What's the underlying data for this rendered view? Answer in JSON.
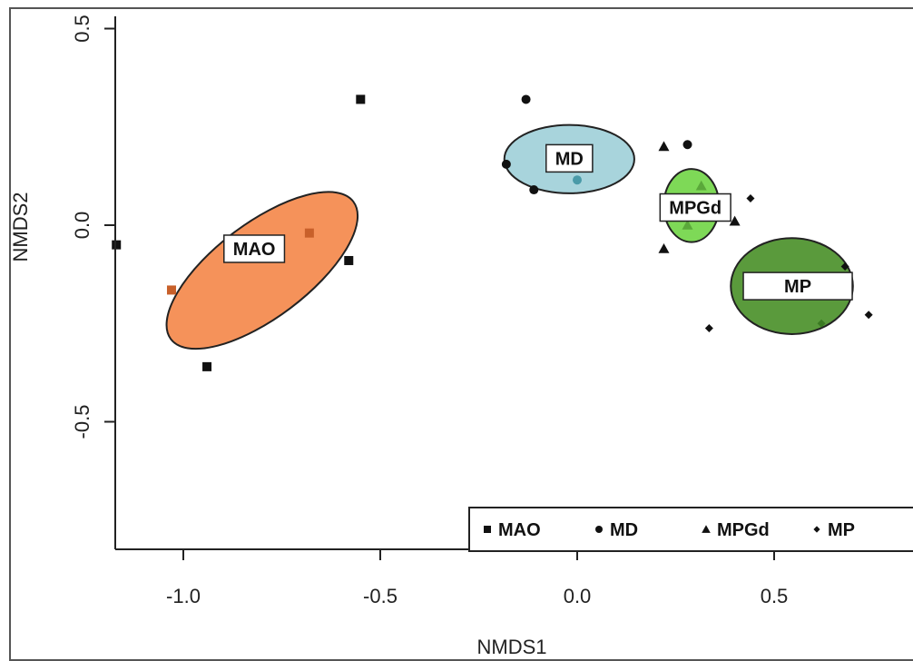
{
  "chart_data": {
    "type": "scatter",
    "title": "",
    "xlabel": "NMDS1",
    "ylabel": "NMDS2",
    "xlim": [
      -1.2,
      0.85
    ],
    "ylim": [
      -0.82,
      0.53
    ],
    "xticks": [
      -1.0,
      -0.5,
      0.0,
      0.5
    ],
    "xtick_labels": [
      "-1.0",
      "-0.5",
      "0.0",
      "0.5"
    ],
    "yticks": [
      -0.5,
      0.0,
      0.5
    ],
    "ytick_labels": [
      "-0.5",
      "0.0",
      "0.5"
    ],
    "grid": false,
    "legend_position": "bottom-right",
    "series": [
      {
        "name": "MAO",
        "marker": "square",
        "ellipse_color": "#f5925a",
        "centroid_color": "#c8602a",
        "points": [
          [
            -1.17,
            -0.05
          ],
          [
            -0.94,
            -0.36
          ],
          [
            -0.58,
            -0.09
          ],
          [
            -0.55,
            0.32
          ]
        ],
        "centroid_markers": [
          [
            -1.03,
            -0.165
          ],
          [
            -0.68,
            -0.02
          ]
        ],
        "label_at": [
          -0.82,
          -0.06
        ],
        "ellipse": {
          "cx": -0.8,
          "cy": -0.115,
          "rx": 0.29,
          "ry": 0.12,
          "angle_deg": -37
        }
      },
      {
        "name": "MD",
        "marker": "circle",
        "ellipse_color": "#a8d4dc",
        "centroid_color": "#4a9aa8",
        "points": [
          [
            -0.13,
            0.32
          ],
          [
            -0.18,
            0.155
          ],
          [
            -0.11,
            0.09
          ],
          [
            0.28,
            0.205
          ]
        ],
        "centroid_markers": [
          [
            0.0,
            0.115
          ]
        ],
        "label_at": [
          -0.02,
          0.17
        ],
        "ellipse": {
          "cx": -0.02,
          "cy": 0.168,
          "rx": 0.165,
          "ry": 0.087,
          "angle_deg": 0
        }
      },
      {
        "name": "MPGd",
        "marker": "triangle",
        "ellipse_color": "#7ed957",
        "centroid_color": "#5aa83a",
        "points": [
          [
            0.22,
            0.2
          ],
          [
            0.22,
            -0.06
          ],
          [
            0.4,
            0.01
          ]
        ],
        "centroid_markers": [
          [
            0.315,
            0.1
          ],
          [
            0.28,
            0.0
          ]
        ],
        "label_at": [
          0.3,
          0.045
        ],
        "ellipse": {
          "cx": 0.29,
          "cy": 0.05,
          "rx": 0.07,
          "ry": 0.093,
          "angle_deg": 0
        }
      },
      {
        "name": "MP",
        "marker": "diamond",
        "ellipse_color": "#5a9a3c",
        "centroid_color": "#3a7a22",
        "points": [
          [
            0.44,
            0.068
          ],
          [
            0.335,
            -0.262
          ],
          [
            0.68,
            -0.105
          ],
          [
            0.74,
            -0.228
          ]
        ],
        "centroid_markers": [
          [
            0.62,
            -0.25
          ]
        ],
        "label_at": [
          0.56,
          -0.155
        ],
        "ellipse": {
          "cx": 0.545,
          "cy": -0.155,
          "rx": 0.155,
          "ry": 0.122,
          "angle_deg": 0
        }
      }
    ]
  }
}
